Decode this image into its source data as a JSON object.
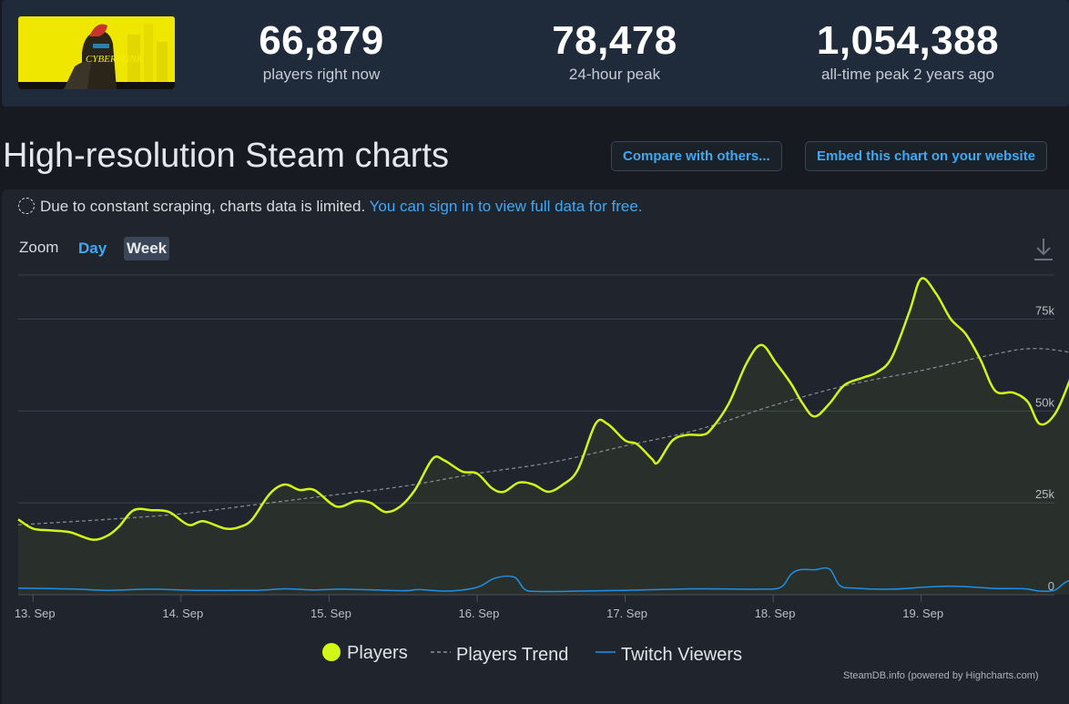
{
  "header": {
    "cover_text": "CYBERPUNK",
    "stats": [
      {
        "value": "66,879",
        "label": "players right now"
      },
      {
        "value": "78,478",
        "label": "24-hour peak"
      },
      {
        "value": "1,054,388",
        "label": "all-time peak 2 years ago"
      }
    ]
  },
  "page_title": "High-resolution Steam charts",
  "buttons": {
    "compare": "Compare with others...",
    "embed": "Embed this chart on your website"
  },
  "notice": {
    "icon": "dashed-circle-icon",
    "text": "Due to constant scraping, charts data is limited.",
    "link": "You can sign in to view full data for free."
  },
  "zoom": {
    "label": "Zoom",
    "options": [
      "Day",
      "Week"
    ],
    "selected": "Week"
  },
  "credits": "SteamDB.info (powered by Highcharts.com)",
  "colors": {
    "players": "#d2f615",
    "trend": "#8a9099",
    "twitch": "#1e90e8",
    "link": "#3da9f5"
  },
  "chart_data": {
    "type": "line",
    "ylim": [
      0,
      87000
    ],
    "yticks": [
      {
        "value": 0,
        "label": "0"
      },
      {
        "value": 25000,
        "label": "25k"
      },
      {
        "value": 50000,
        "label": "50k"
      },
      {
        "value": 75000,
        "label": "75k"
      }
    ],
    "xticks": [
      {
        "x": 0.5,
        "label": "13. Sep"
      },
      {
        "x": 1.5,
        "label": "14. Sep"
      },
      {
        "x": 2.5,
        "label": "15. Sep"
      },
      {
        "x": 3.5,
        "label": "16. Sep"
      },
      {
        "x": 4.5,
        "label": "17. Sep"
      },
      {
        "x": 5.5,
        "label": "18. Sep"
      },
      {
        "x": 6.5,
        "label": "19. Sep"
      }
    ],
    "xlim": [
      0.4,
      7.4
    ],
    "x_unit": "days",
    "series": [
      {
        "name": "Players",
        "style": "line-filled",
        "points": [
          [
            0.4,
            20500
          ],
          [
            0.5,
            18000
          ],
          [
            0.62,
            17500
          ],
          [
            0.75,
            17000
          ],
          [
            0.9,
            15000
          ],
          [
            1.0,
            16000
          ],
          [
            1.08,
            18500
          ],
          [
            1.18,
            23000
          ],
          [
            1.3,
            23000
          ],
          [
            1.42,
            22500
          ],
          [
            1.55,
            19000
          ],
          [
            1.65,
            20000
          ],
          [
            1.8,
            18000
          ],
          [
            1.9,
            18500
          ],
          [
            1.98,
            20500
          ],
          [
            2.1,
            27500
          ],
          [
            2.2,
            30000
          ],
          [
            2.3,
            28500
          ],
          [
            2.4,
            28500
          ],
          [
            2.55,
            24000
          ],
          [
            2.68,
            25500
          ],
          [
            2.78,
            25000
          ],
          [
            2.88,
            22500
          ],
          [
            2.98,
            24000
          ],
          [
            3.08,
            28500
          ],
          [
            3.2,
            37000
          ],
          [
            3.28,
            36500
          ],
          [
            3.4,
            33500
          ],
          [
            3.5,
            33000
          ],
          [
            3.6,
            29000
          ],
          [
            3.68,
            28000
          ],
          [
            3.78,
            30500
          ],
          [
            3.88,
            30000
          ],
          [
            3.98,
            28000
          ],
          [
            4.08,
            30000
          ],
          [
            4.18,
            34000
          ],
          [
            4.3,
            46500
          ],
          [
            4.38,
            46500
          ],
          [
            4.5,
            42000
          ],
          [
            4.58,
            41000
          ],
          [
            4.68,
            37000
          ],
          [
            4.72,
            36000
          ],
          [
            4.82,
            42000
          ],
          [
            4.92,
            43500
          ],
          [
            5.02,
            43500
          ],
          [
            5.08,
            45000
          ],
          [
            5.2,
            52000
          ],
          [
            5.32,
            63000
          ],
          [
            5.42,
            68000
          ],
          [
            5.52,
            63000
          ],
          [
            5.62,
            57500
          ],
          [
            5.7,
            52000
          ],
          [
            5.78,
            48500
          ],
          [
            5.88,
            52000
          ],
          [
            5.98,
            57000
          ],
          [
            6.1,
            59000
          ],
          [
            6.2,
            60500
          ],
          [
            6.3,
            64500
          ],
          [
            6.42,
            77000
          ],
          [
            6.5,
            86000
          ],
          [
            6.6,
            82000
          ],
          [
            6.7,
            75000
          ],
          [
            6.8,
            71000
          ],
          [
            6.9,
            64000
          ],
          [
            7.0,
            55500
          ],
          [
            7.12,
            55000
          ],
          [
            7.22,
            52500
          ],
          [
            7.3,
            46500
          ],
          [
            7.4,
            49000
          ],
          [
            7.5,
            58000
          ],
          [
            7.6,
            70000
          ],
          [
            7.68,
            77000
          ],
          [
            7.74,
            75500
          ],
          [
            7.82,
            70000
          ],
          [
            7.9,
            67000
          ],
          [
            7.98,
            66000
          ]
        ]
      },
      {
        "name": "Players Trend",
        "style": "dashed",
        "points": [
          [
            0.4,
            19000
          ],
          [
            1.0,
            20500
          ],
          [
            1.5,
            22000
          ],
          [
            2.0,
            24500
          ],
          [
            2.5,
            27000
          ],
          [
            3.0,
            29500
          ],
          [
            3.5,
            33000
          ],
          [
            4.0,
            36000
          ],
          [
            4.5,
            40500
          ],
          [
            5.0,
            45000
          ],
          [
            5.5,
            51500
          ],
          [
            6.0,
            57000
          ],
          [
            6.5,
            61000
          ],
          [
            7.0,
            65500
          ],
          [
            7.25,
            67000
          ],
          [
            7.5,
            66000
          ],
          [
            7.75,
            63500
          ],
          [
            7.98,
            61500
          ]
        ]
      },
      {
        "name": "Twitch Viewers",
        "style": "line",
        "points": [
          [
            0.4,
            1800
          ],
          [
            0.8,
            1500
          ],
          [
            1.0,
            1200
          ],
          [
            1.3,
            1500
          ],
          [
            1.6,
            1200
          ],
          [
            2.0,
            1200
          ],
          [
            2.2,
            1600
          ],
          [
            2.4,
            1300
          ],
          [
            2.6,
            1500
          ],
          [
            3.0,
            1100
          ],
          [
            3.1,
            1400
          ],
          [
            3.3,
            1000
          ],
          [
            3.5,
            2000
          ],
          [
            3.62,
            4500
          ],
          [
            3.75,
            4800
          ],
          [
            3.82,
            1500
          ],
          [
            3.9,
            900
          ],
          [
            4.2,
            1000
          ],
          [
            4.5,
            1200
          ],
          [
            5.0,
            1600
          ],
          [
            5.4,
            1500
          ],
          [
            5.55,
            2000
          ],
          [
            5.62,
            5500
          ],
          [
            5.68,
            6800
          ],
          [
            5.78,
            6800
          ],
          [
            5.88,
            7000
          ],
          [
            5.95,
            2500
          ],
          [
            6.05,
            1800
          ],
          [
            6.3,
            1500
          ],
          [
            6.5,
            2000
          ],
          [
            6.65,
            2300
          ],
          [
            6.8,
            2200
          ],
          [
            7.0,
            1700
          ],
          [
            7.2,
            1600
          ],
          [
            7.3,
            1000
          ],
          [
            7.4,
            1200
          ],
          [
            7.48,
            3500
          ],
          [
            7.6,
            5000
          ],
          [
            7.75,
            6500
          ],
          [
            7.82,
            10200
          ],
          [
            7.86,
            9500
          ],
          [
            7.9,
            5000
          ],
          [
            7.98,
            3000
          ]
        ]
      }
    ]
  }
}
